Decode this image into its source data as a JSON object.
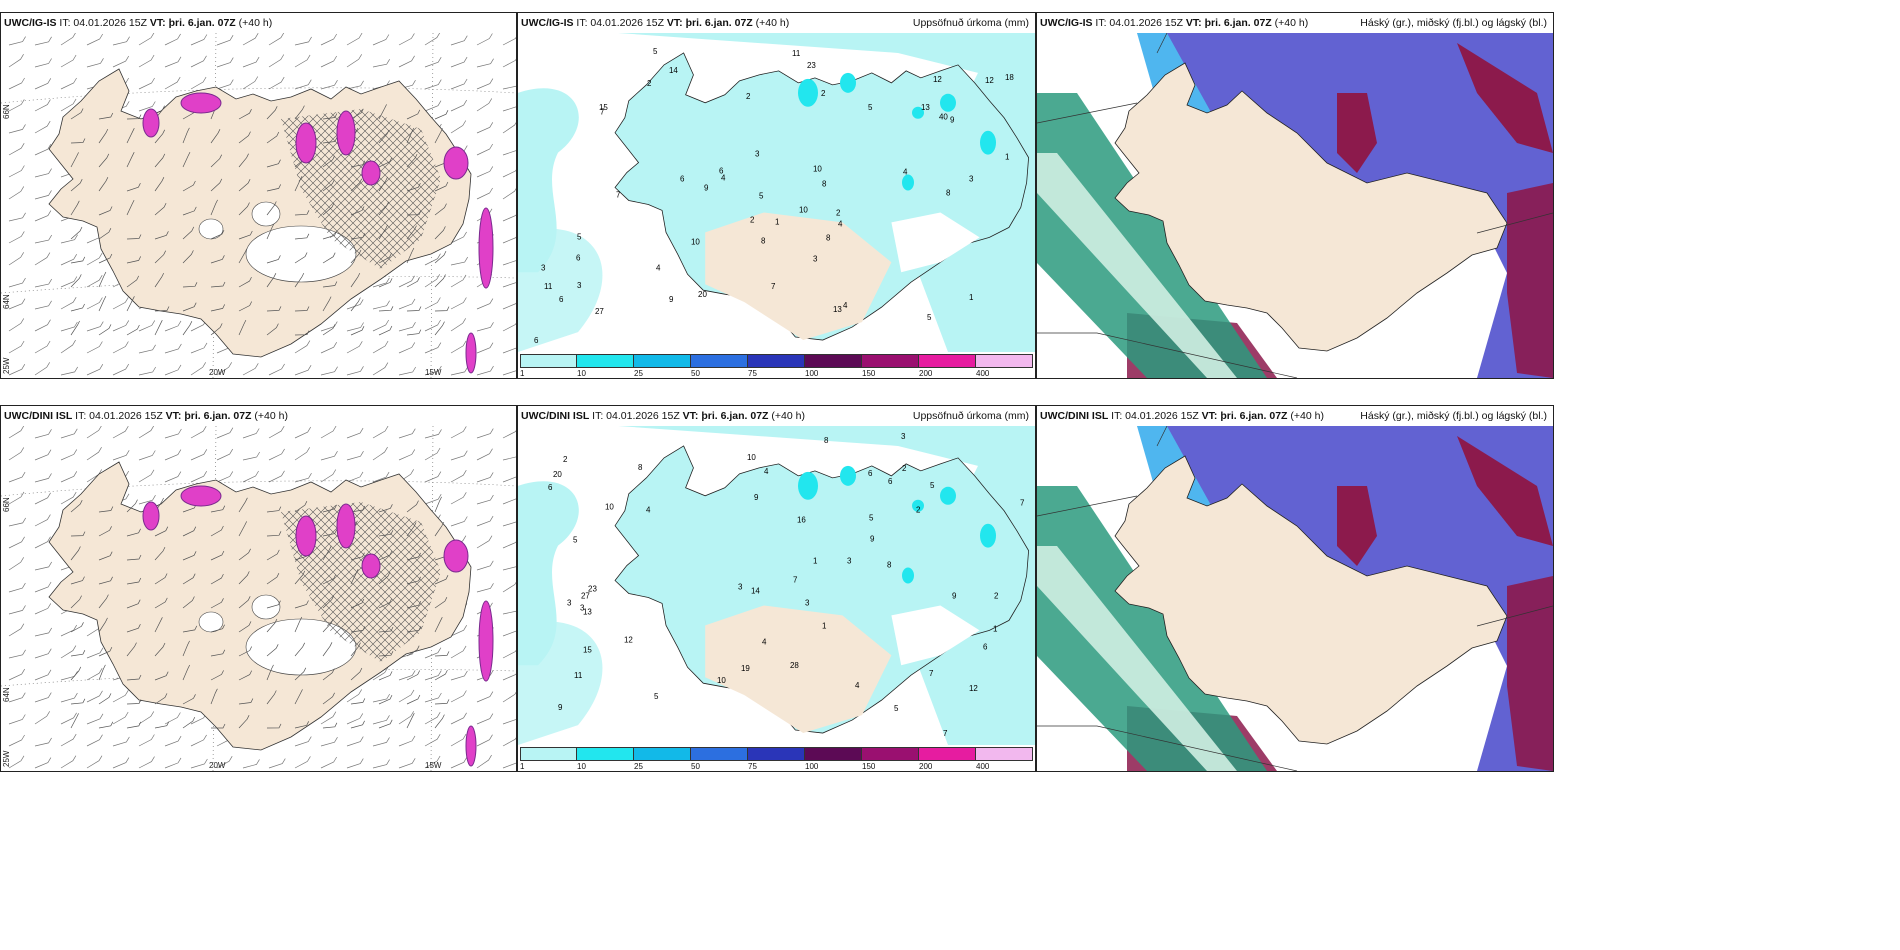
{
  "panels": [
    {
      "id": "tl",
      "model": "UWC/IG-IS",
      "it": "IT: 04.01.2026 15Z",
      "vt_label": "VT:",
      "vt": "þri. 6.jan. 07Z",
      "lead": "(+40 h)",
      "right": ""
    },
    {
      "id": "tm",
      "model": "UWC/IG-IS",
      "it": "IT: 04.01.2026 15Z",
      "vt_label": "VT:",
      "vt": "þri. 6.jan. 07Z",
      "lead": "(+40 h)",
      "right": "Uppsöfnuð úrkoma (mm)"
    },
    {
      "id": "tr",
      "model": "UWC/IG-IS",
      "it": "IT: 04.01.2026 15Z",
      "vt_label": "VT:",
      "vt": "þri. 6.jan. 07Z",
      "lead": "(+40 h)",
      "right": "Háský (gr.), miðský (fj.bl.) og lágský (bl.)"
    },
    {
      "id": "bl",
      "model": "UWC/DINI ISL",
      "it": "IT: 04.01.2026 15Z",
      "vt_label": "VT:",
      "vt": "þri. 6.jan. 07Z",
      "lead": "(+40 h)",
      "right": ""
    },
    {
      "id": "bm",
      "model": "UWC/DINI ISL",
      "it": "IT: 04.01.2026 15Z",
      "vt_label": "VT:",
      "vt": "þri. 6.jan. 07Z",
      "lead": "(+40 h)",
      "right": "Uppsöfnuð úrkoma (mm)"
    },
    {
      "id": "br",
      "model": "UWC/DINI ISL",
      "it": "IT: 04.01.2026 15Z",
      "vt_label": "VT:",
      "vt": "þri. 6.jan. 07Z",
      "lead": "(+40 h)",
      "right": "Háský (gr.), miðský (fj.bl.) og lágský (bl.)"
    }
  ],
  "axis_labels": {
    "lat66": "66N",
    "lat64": "64N",
    "lon20": "20W",
    "lon15": "15W",
    "lon25": "25W"
  },
  "colorbar": {
    "ticks": [
      "1",
      "10",
      "25",
      "50",
      "75",
      "100",
      "150",
      "200",
      "400"
    ],
    "colors": [
      "#b8f4f4",
      "#22e6ee",
      "#12b9e8",
      "#2c6fe0",
      "#2a35b8",
      "#5c0a55",
      "#9a1070",
      "#e61ca0",
      "#f2b8ee"
    ]
  },
  "precip_top": [
    "2",
    "3",
    "4",
    "5",
    "6",
    "7",
    "8",
    "9",
    "10",
    "12",
    "13",
    "14",
    "15",
    "18",
    "20",
    "23",
    "27",
    "40",
    "11",
    "13",
    "5",
    "6",
    "4",
    "3",
    "2",
    "1",
    "4",
    "6",
    "9",
    "12",
    "10",
    "8",
    "7",
    "5",
    "3",
    "2",
    "1",
    "6",
    "5",
    "4",
    "3",
    "2",
    "1",
    "7",
    "8",
    "9",
    "10",
    "11",
    "2",
    "4",
    "6",
    "8",
    "5",
    "3"
  ],
  "precip_bot": [
    "3",
    "4",
    "5",
    "6",
    "7",
    "8",
    "9",
    "10",
    "11",
    "12",
    "13",
    "15",
    "19",
    "20",
    "23",
    "27",
    "28",
    "14",
    "16",
    "12",
    "10",
    "5",
    "4",
    "3",
    "2",
    "1",
    "6",
    "7",
    "8",
    "9",
    "4",
    "5",
    "3",
    "2",
    "1",
    "6",
    "7",
    "8",
    "9",
    "10",
    "3",
    "2",
    "5",
    "4",
    "6",
    "3",
    "2",
    "1",
    "3",
    "5",
    "7",
    "9"
  ],
  "colors": {
    "land": "#f5e7d6",
    "sea": "#ffffff",
    "precip_light": "#b8f4f4",
    "snow": "#e040c8",
    "snow_dark": "#7a2a8e",
    "high_cloud": "#2b9a7e",
    "mid_cloud": "#5a5ad0",
    "low_cloud": "#8c1a4c"
  }
}
